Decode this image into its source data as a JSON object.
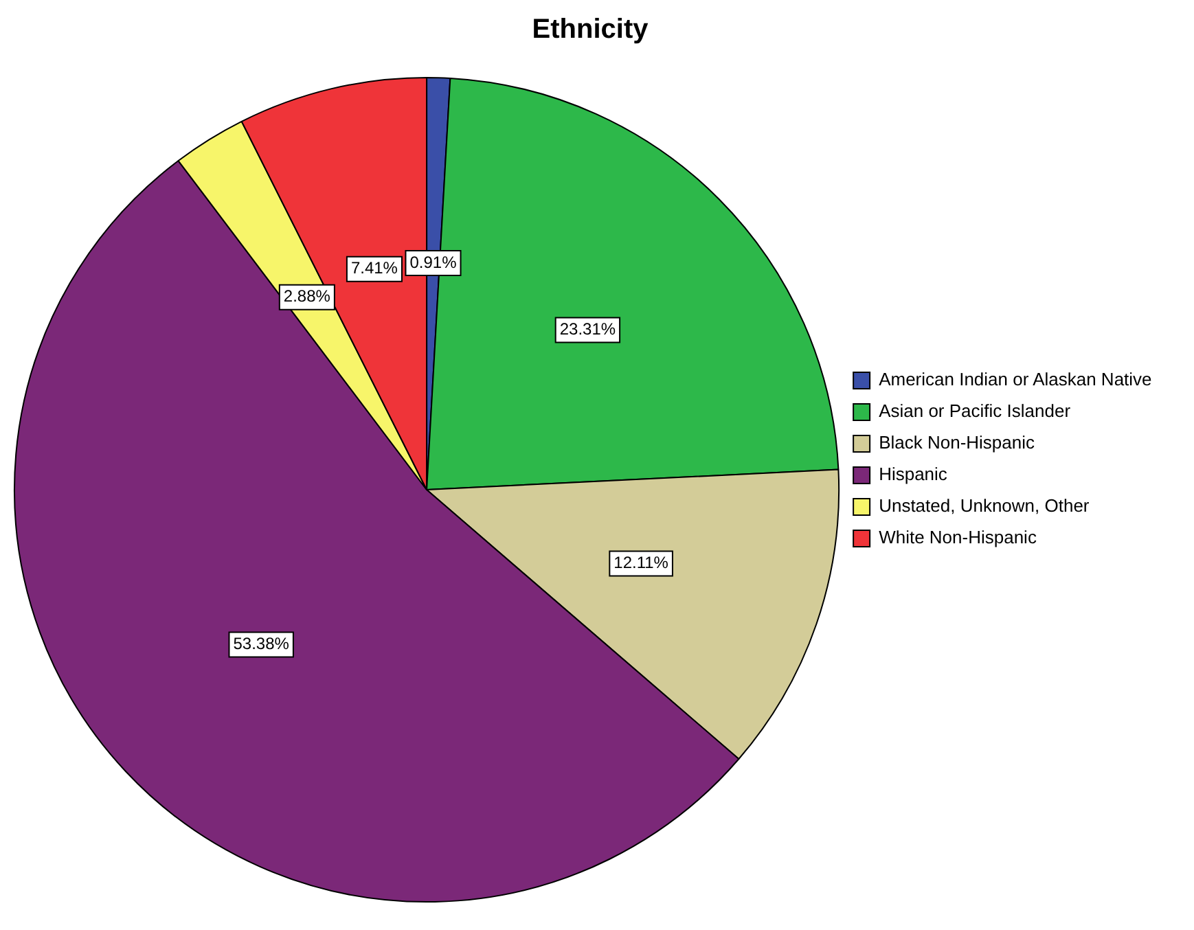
{
  "chart_data": {
    "type": "pie",
    "title": "Ethnicity",
    "categories": [
      "American Indian or Alaskan Native",
      "Asian or Pacific Islander",
      "Black Non-Hispanic",
      "Hispanic",
      "Unstated, Unknown, Other",
      "White Non-Hispanic"
    ],
    "values": [
      0.91,
      23.31,
      12.11,
      53.38,
      2.88,
      7.41
    ],
    "colors": [
      "#3a4fa8",
      "#2db84a",
      "#d3cc98",
      "#7b2878",
      "#f7f56a",
      "#ef3439"
    ],
    "value_labels": [
      "0.91%",
      "23.31%",
      "12.11%",
      "53.38%",
      "2.88%",
      "7.41%"
    ],
    "legend": "right"
  }
}
